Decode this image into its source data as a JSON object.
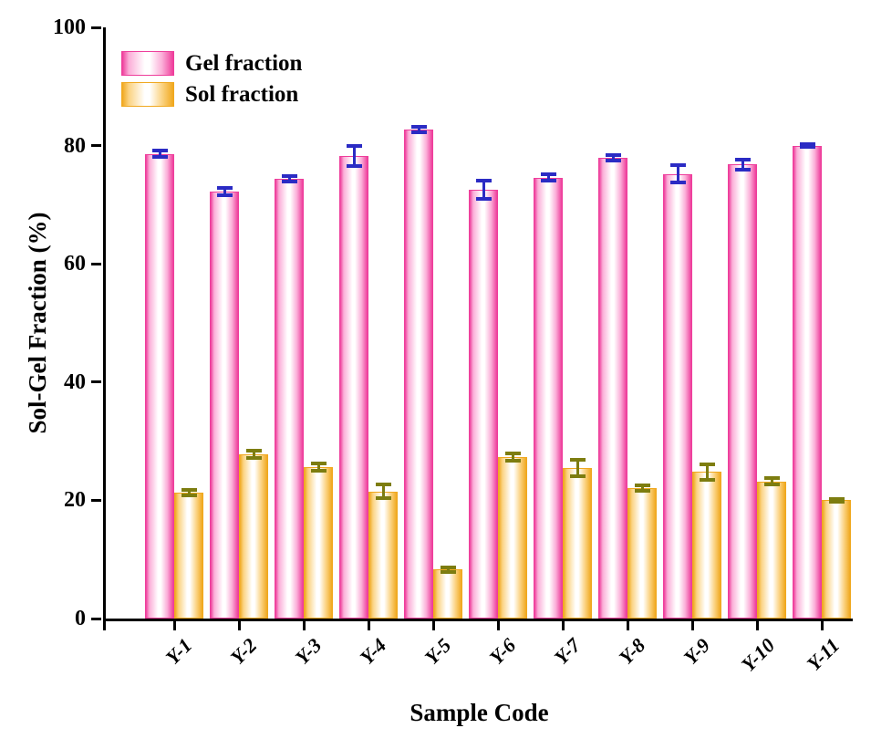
{
  "chart_data": {
    "type": "bar",
    "title": "",
    "xlabel": "Sample Code",
    "ylabel": "Sol-Gel Fraction (%)",
    "categories": [
      "Y-1",
      "Y-2",
      "Y-3",
      "Y-4",
      "Y-5",
      "Y-6",
      "Y-7",
      "Y-8",
      "Y-9",
      "Y-10",
      "Y-11"
    ],
    "series": [
      {
        "name": "Gel fraction",
        "values": [
          78.6,
          72.2,
          74.4,
          78.3,
          82.7,
          72.5,
          74.6,
          77.9,
          75.2,
          76.8,
          80.0
        ],
        "errors": [
          0.9,
          0.9,
          0.8,
          2.0,
          0.8,
          1.9,
          0.8,
          0.8,
          1.8,
          1.2,
          0.6
        ],
        "edge_color": "#ee3d9b",
        "light_color": "#fbaed8",
        "error_color": "#2b2bc4"
      },
      {
        "name": "Sol fraction",
        "values": [
          21.3,
          27.8,
          25.6,
          21.5,
          8.3,
          27.3,
          25.5,
          22.1,
          24.8,
          23.2,
          20.0
        ],
        "errors": [
          0.8,
          0.9,
          0.9,
          1.5,
          0.7,
          0.9,
          1.7,
          0.8,
          1.6,
          0.9,
          0.5
        ],
        "edge_color": "#f0a81f",
        "light_color": "#fbd382",
        "error_color": "#7d7d10"
      }
    ],
    "ylim": [
      0,
      100
    ],
    "yticks": [
      0,
      20,
      40,
      60,
      80,
      100
    ],
    "grid": false,
    "legend_position": "top-left"
  }
}
